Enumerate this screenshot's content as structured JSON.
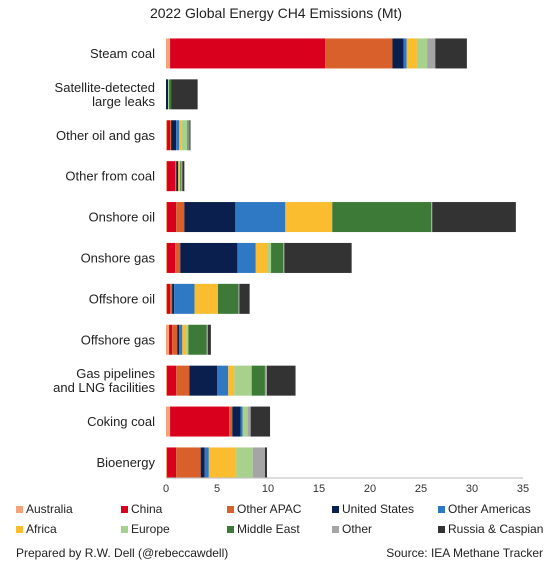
{
  "chart_data": {
    "type": "bar",
    "orientation": "horizontal",
    "stacked": true,
    "title": "2022 Global Energy CH4 Emissions (Mt)",
    "xlabel": "",
    "ylabel": "",
    "xlim": [
      0,
      35
    ],
    "xticks": [
      0,
      5,
      10,
      15,
      20,
      25,
      30,
      35
    ],
    "grid": false,
    "legend_position": "bottom",
    "categories": [
      "Steam coal",
      "Satellite-detected large leaks",
      "Other oil and gas",
      "Other from coal",
      "Onshore oil",
      "Onshore gas",
      "Offshore oil",
      "Offshore gas",
      "Gas pipelines and LNG facilities",
      "Coking coal",
      "Bioenergy"
    ],
    "category_display": [
      [
        "Steam coal"
      ],
      [
        "Satellite-detected",
        "large leaks"
      ],
      [
        "Other oil and gas"
      ],
      [
        "Other from coal"
      ],
      [
        "Onshore oil"
      ],
      [
        "Onshore gas"
      ],
      [
        "Offshore oil"
      ],
      [
        "Offshore gas"
      ],
      [
        "Gas pipelines",
        "and LNG facilities"
      ],
      [
        "Coking coal"
      ],
      [
        "Bioenergy"
      ]
    ],
    "series": [
      {
        "name": "Australia",
        "color": "#f4a37a",
        "values": [
          0.4,
          0.0,
          0.1,
          0.1,
          0.1,
          0.1,
          0.1,
          0.3,
          0.1,
          0.4,
          0.1
        ]
      },
      {
        "name": "China",
        "color": "#d8001c",
        "values": [
          15.2,
          0.0,
          0.3,
          0.8,
          0.9,
          0.8,
          0.3,
          0.3,
          0.9,
          5.8,
          0.9
        ]
      },
      {
        "name": "Other APAC",
        "color": "#d95f2b",
        "values": [
          6.6,
          0.0,
          0.1,
          0.1,
          0.8,
          0.5,
          0.2,
          0.5,
          1.3,
          0.3,
          2.4
        ]
      },
      {
        "name": "United States",
        "color": "#0b1f4e",
        "values": [
          1.1,
          0.2,
          0.5,
          0.2,
          5.0,
          5.6,
          0.2,
          0.2,
          2.7,
          0.8,
          0.4
        ]
      },
      {
        "name": "Other Americas",
        "color": "#2f78c4",
        "values": [
          0.3,
          0.0,
          0.3,
          0.0,
          4.9,
          1.8,
          2.0,
          0.3,
          1.1,
          0.2,
          0.4
        ]
      },
      {
        "name": "Africa",
        "color": "#fbbd30",
        "values": [
          1.0,
          0.0,
          0.2,
          0.1,
          4.6,
          1.2,
          2.3,
          0.4,
          0.6,
          0.0,
          2.7
        ]
      },
      {
        "name": "Europe",
        "color": "#a8d18d",
        "values": [
          1.0,
          0.1,
          0.6,
          0.1,
          0.0,
          0.3,
          0.0,
          0.2,
          1.7,
          0.5,
          1.6
        ]
      },
      {
        "name": "Middle East",
        "color": "#3d7a38",
        "values": [
          0.0,
          0.2,
          0.1,
          0.1,
          9.7,
          1.2,
          2.0,
          1.8,
          1.3,
          0.0,
          0.0
        ]
      },
      {
        "name": "Other",
        "color": "#a5a5a5",
        "values": [
          0.8,
          0.0,
          0.1,
          0.1,
          0.1,
          0.1,
          0.1,
          0.1,
          0.2,
          0.3,
          1.2
        ]
      },
      {
        "name": "Russia & Caspian",
        "color": "#333333",
        "values": [
          3.1,
          2.6,
          0.1,
          0.2,
          8.2,
          6.6,
          1.0,
          0.3,
          2.8,
          1.9,
          0.2
        ]
      }
    ]
  },
  "footer": {
    "credit": "Prepared by R.W. Dell (@rebeccawdell)",
    "source": "Source: IEA Methane Tracker"
  }
}
